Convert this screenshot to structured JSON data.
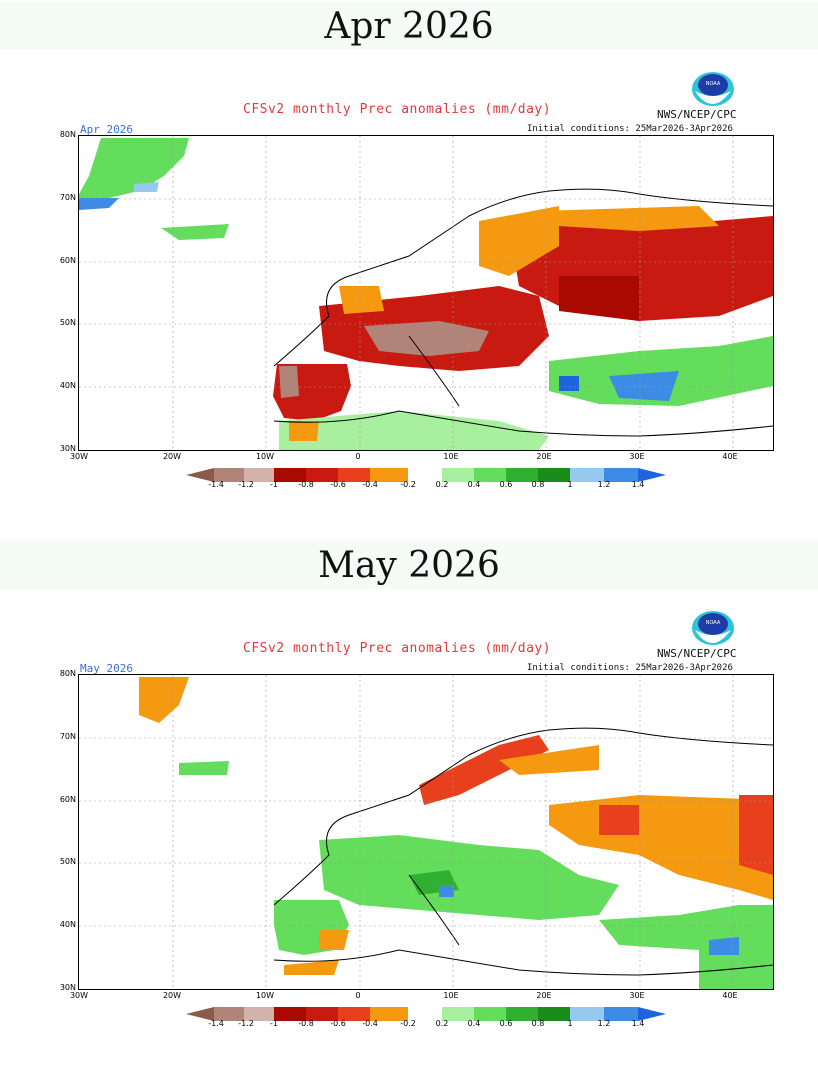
{
  "panels": [
    {
      "header": "Apr 2026",
      "title": "CFSv2 monthly Prec anomalies (mm/day)",
      "agency": "NWS/NCEP/CPC",
      "month_label": "Apr 2026",
      "init_conditions": "Initial conditions: 25Mar2026-3Apr2026"
    },
    {
      "header": "May 2026",
      "title": "CFSv2 monthly Prec anomalies (mm/day)",
      "agency": "NWS/NCEP/CPC",
      "month_label": "May 2026",
      "init_conditions": "Initial conditions: 25Mar2026-3Apr2026"
    }
  ],
  "axes": {
    "lat_labels": [
      "80N",
      "70N",
      "60N",
      "50N",
      "40N",
      "30N"
    ],
    "lon_labels": [
      "30W",
      "20W",
      "10W",
      "0",
      "10E",
      "20E",
      "30E",
      "40E"
    ]
  },
  "colorbar": {
    "labels": [
      "-1.4",
      "-1.2",
      "-1",
      "-0.8",
      "-0.6",
      "-0.4",
      "-0.2",
      "0.2",
      "0.4",
      "0.6",
      "0.8",
      "1",
      "1.2",
      "1.4"
    ],
    "colors": [
      "#8b5a4a",
      "#b08478",
      "#d2b2aa",
      "#a80a00",
      "#c81a10",
      "#e8401c",
      "#f59a10",
      "#ffffff",
      "#a8f0a0",
      "#64dc5c",
      "#30b030",
      "#1a8c1a",
      "#96c8f0",
      "#3c8ce6",
      "#1e64dc"
    ]
  }
}
